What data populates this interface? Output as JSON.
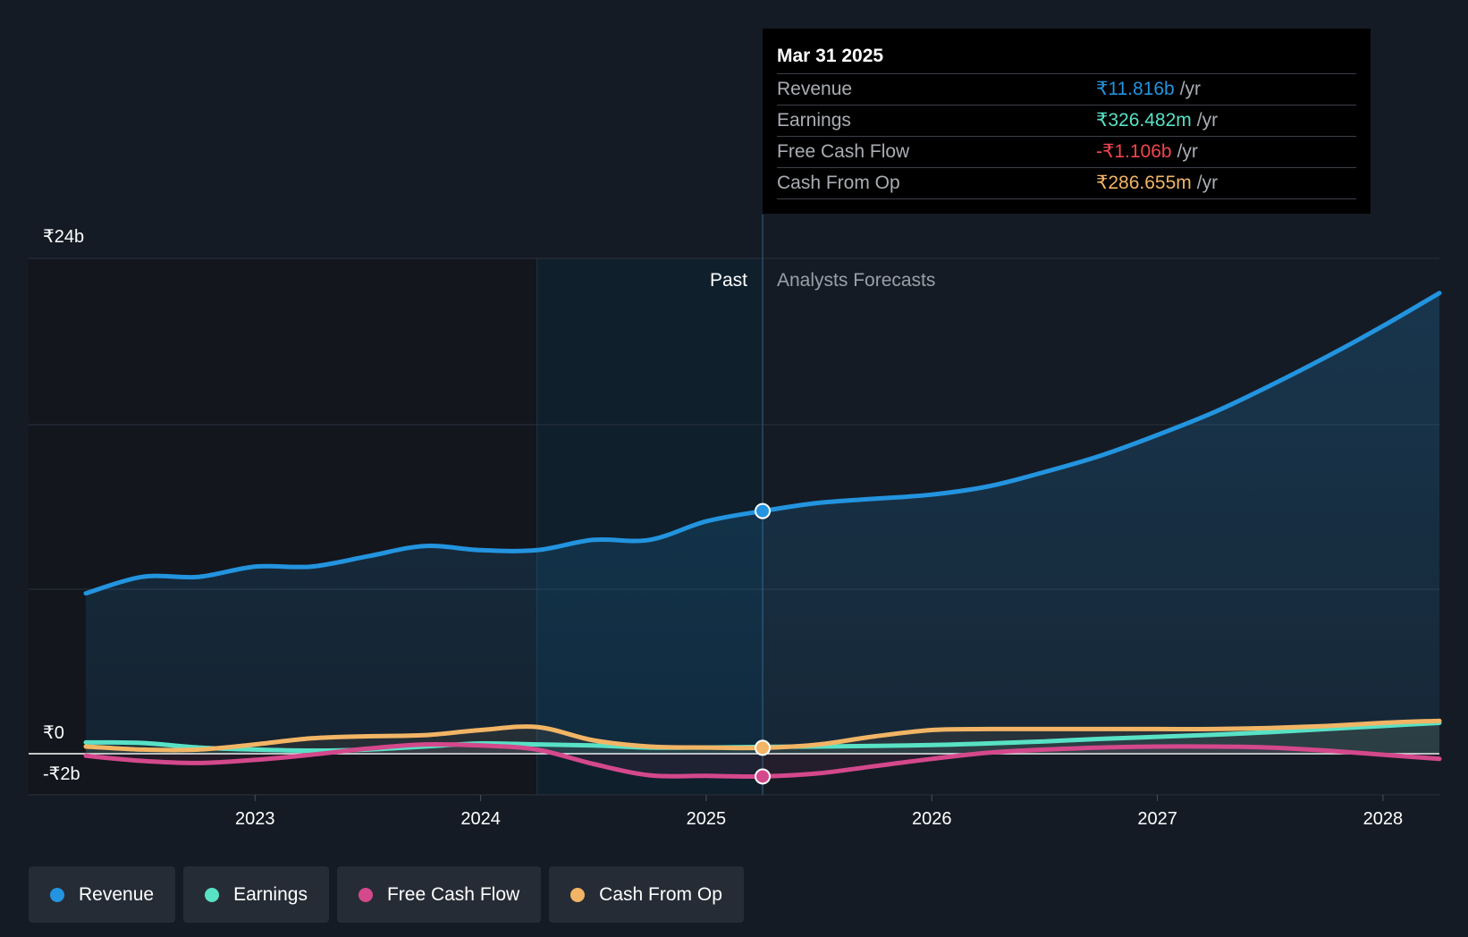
{
  "chart_data": {
    "type": "line",
    "y_tick_labels": [
      "₹24b",
      "₹0",
      "-₹2b"
    ],
    "x_tick_labels": [
      "2023",
      "2024",
      "2025",
      "2026",
      "2027",
      "2028"
    ],
    "ylim": [
      -2,
      24
    ],
    "region_labels": {
      "past": "Past",
      "forecast": "Analysts Forecasts"
    },
    "divider_x": 2025.25,
    "highlight_start_x": 2024.25,
    "series": [
      {
        "name": "Revenue",
        "color": "#2394df",
        "x": [
          2022.25,
          2022.5,
          2022.75,
          2023.0,
          2023.25,
          2023.5,
          2023.75,
          2024.0,
          2024.25,
          2024.5,
          2024.75,
          2025.0,
          2025.25,
          2025.5,
          2025.75,
          2026.0,
          2026.25,
          2026.5,
          2026.75,
          2027.0,
          2027.25,
          2027.5,
          2027.75,
          2028.0,
          2028.25
        ],
        "values": [
          7.8,
          8.6,
          8.6,
          9.1,
          9.1,
          9.6,
          10.1,
          9.9,
          9.9,
          10.4,
          10.4,
          11.3,
          11.8,
          12.2,
          12.4,
          12.6,
          13.0,
          13.7,
          14.5,
          15.5,
          16.6,
          17.9,
          19.3,
          20.8,
          22.4
        ]
      },
      {
        "name": "Earnings",
        "color": "#58e1c5",
        "x": [
          2022.25,
          2022.5,
          2022.75,
          2023.0,
          2023.25,
          2023.5,
          2023.75,
          2024.0,
          2024.25,
          2024.5,
          2024.75,
          2025.0,
          2025.25,
          2025.5,
          2025.75,
          2026.0,
          2026.25,
          2026.5,
          2026.75,
          2027.0,
          2027.25,
          2027.5,
          2027.75,
          2028.0,
          2028.25
        ],
        "values": [
          0.55,
          0.52,
          0.3,
          0.2,
          0.15,
          0.2,
          0.35,
          0.5,
          0.45,
          0.4,
          0.3,
          0.3,
          0.33,
          0.35,
          0.38,
          0.42,
          0.5,
          0.6,
          0.72,
          0.82,
          0.92,
          1.05,
          1.2,
          1.35,
          1.5
        ]
      },
      {
        "name": "Free Cash Flow",
        "color": "#d4488c",
        "x": [
          2022.25,
          2022.5,
          2022.75,
          2023.0,
          2023.25,
          2023.5,
          2023.75,
          2024.0,
          2024.25,
          2024.5,
          2024.75,
          2025.0,
          2025.25,
          2025.5,
          2025.75,
          2026.0,
          2026.25,
          2026.5,
          2026.75,
          2027.0,
          2027.25,
          2027.5,
          2027.75,
          2028.0,
          2028.25
        ],
        "values": [
          -0.1,
          -0.35,
          -0.45,
          -0.3,
          -0.05,
          0.25,
          0.45,
          0.4,
          0.2,
          -0.5,
          -1.05,
          -1.08,
          -1.106,
          -0.95,
          -0.6,
          -0.25,
          0.05,
          0.2,
          0.3,
          0.35,
          0.35,
          0.3,
          0.15,
          -0.05,
          -0.25
        ]
      },
      {
        "name": "Cash From Op",
        "color": "#f2b565",
        "x": [
          2022.25,
          2022.5,
          2022.75,
          2023.0,
          2023.25,
          2023.5,
          2023.75,
          2024.0,
          2024.25,
          2024.5,
          2024.75,
          2025.0,
          2025.25,
          2025.5,
          2025.75,
          2026.0,
          2026.25,
          2026.5,
          2026.75,
          2027.0,
          2027.25,
          2027.5,
          2027.75,
          2028.0,
          2028.25
        ],
        "values": [
          0.35,
          0.2,
          0.2,
          0.45,
          0.75,
          0.85,
          0.9,
          1.15,
          1.3,
          0.65,
          0.35,
          0.3,
          0.287,
          0.45,
          0.85,
          1.15,
          1.2,
          1.2,
          1.2,
          1.2,
          1.2,
          1.25,
          1.35,
          1.5,
          1.6
        ]
      }
    ]
  },
  "tooltip": {
    "date": "Mar 31 2025",
    "rows": [
      {
        "label": "Revenue",
        "value": "₹11.816b",
        "unit": "/yr",
        "color": "#2394df"
      },
      {
        "label": "Earnings",
        "value": "₹326.482m",
        "unit": "/yr",
        "color": "#58e1c5"
      },
      {
        "label": "Free Cash Flow",
        "value": "-₹1.106b",
        "unit": "/yr",
        "color": "#f0464c"
      },
      {
        "label": "Cash From Op",
        "value": "₹286.655m",
        "unit": "/yr",
        "color": "#f2b565"
      }
    ]
  },
  "legend": [
    {
      "label": "Revenue",
      "color": "#2394df"
    },
    {
      "label": "Earnings",
      "color": "#58e1c5"
    },
    {
      "label": "Free Cash Flow",
      "color": "#d4488c"
    },
    {
      "label": "Cash From Op",
      "color": "#f2b565"
    }
  ]
}
